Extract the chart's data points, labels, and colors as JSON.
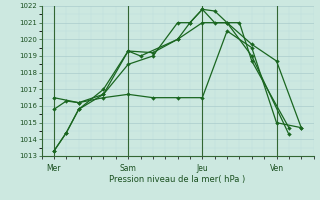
{
  "xlabel": "Pression niveau de la mer( hPa )",
  "ylim": [
    1013,
    1022
  ],
  "yticks": [
    1013,
    1014,
    1015,
    1016,
    1017,
    1018,
    1019,
    1020,
    1021,
    1022
  ],
  "day_labels": [
    "Mer",
    "Sam",
    "Jeu",
    "Ven"
  ],
  "day_positions": [
    0.5,
    3.5,
    6.5,
    9.5
  ],
  "vline_positions": [
    0.5,
    3.5,
    6.5,
    9.5
  ],
  "xlim": [
    0,
    11
  ],
  "bg_color": "#cce8e0",
  "grid_color_major": "#aacccc",
  "grid_color_minor": "#bbdddd",
  "line_color": "#1a6620",
  "lines": [
    {
      "x": [
        0.5,
        1.0,
        1.5,
        2.5,
        3.5,
        4.5,
        5.5,
        6.0,
        6.5,
        7.0,
        7.5,
        8.5,
        10.0
      ],
      "y": [
        1013.3,
        1014.4,
        1015.8,
        1017.0,
        1019.3,
        1019.2,
        1020.0,
        1021.0,
        1021.8,
        1021.7,
        1021.0,
        1019.0,
        1014.3
      ],
      "style": "-",
      "lw": 0.9
    },
    {
      "x": [
        0.5,
        1.0,
        1.5,
        2.5,
        3.5,
        4.5,
        5.5,
        6.0,
        6.5,
        7.0,
        8.0,
        8.5,
        10.0
      ],
      "y": [
        1013.3,
        1014.4,
        1015.8,
        1016.7,
        1018.5,
        1019.0,
        1021.0,
        1021.0,
        1021.8,
        1021.0,
        1021.0,
        1018.7,
        1014.7
      ],
      "style": "-",
      "lw": 0.9
    },
    {
      "x": [
        0.5,
        1.0,
        1.5,
        2.5,
        3.5,
        4.0,
        5.5,
        6.5,
        7.5,
        8.5,
        9.5,
        10.5
      ],
      "y": [
        1015.8,
        1016.3,
        1016.2,
        1016.7,
        1019.3,
        1019.0,
        1020.0,
        1021.0,
        1021.0,
        1019.7,
        1018.7,
        1014.7
      ],
      "style": "-",
      "lw": 0.9
    },
    {
      "x": [
        0.5,
        1.5,
        2.5,
        3.5,
        4.5,
        5.5,
        6.5,
        7.5,
        8.5,
        9.5,
        10.5
      ],
      "y": [
        1016.5,
        1016.2,
        1016.5,
        1016.7,
        1016.5,
        1016.5,
        1016.5,
        1020.5,
        1019.5,
        1015.0,
        1014.7
      ],
      "style": "-",
      "lw": 0.9
    }
  ]
}
